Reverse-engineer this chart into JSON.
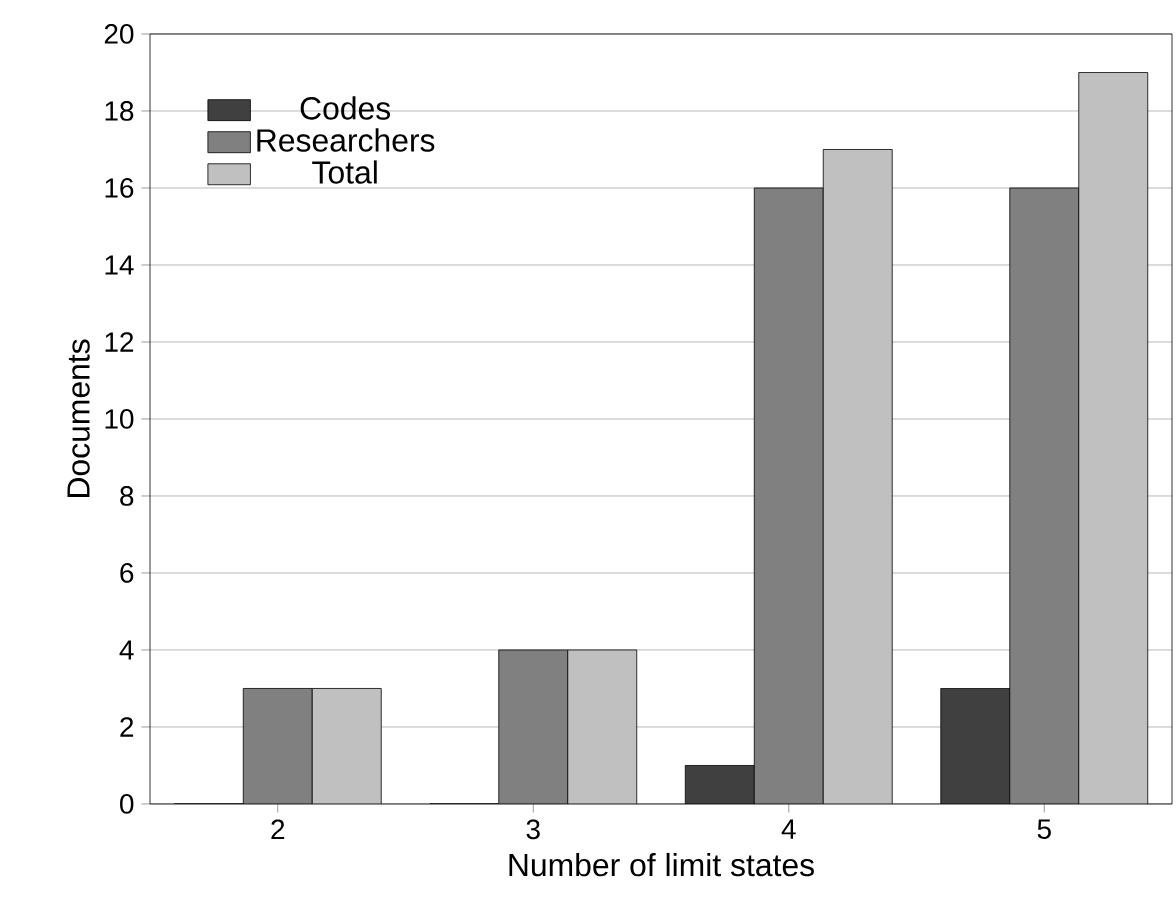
{
  "chart_data": {
    "type": "bar",
    "xlabel": "Number of limit states",
    "ylabel": "Documents",
    "categories": [
      "2",
      "3",
      "4",
      "5"
    ],
    "series": [
      {
        "name": "Codes",
        "color": "#404040",
        "values": [
          0,
          0,
          1,
          3
        ]
      },
      {
        "name": "Researchers",
        "color": "#808080",
        "values": [
          3,
          4,
          16,
          16
        ]
      },
      {
        "name": "Total",
        "color": "#c0c0c0",
        "values": [
          3,
          4,
          17,
          19
        ]
      }
    ],
    "ylim": [
      0,
      20
    ],
    "yticks": [
      0,
      2,
      4,
      6,
      8,
      10,
      12,
      14,
      16,
      18,
      20
    ],
    "grid": "y",
    "legend": "top left"
  }
}
